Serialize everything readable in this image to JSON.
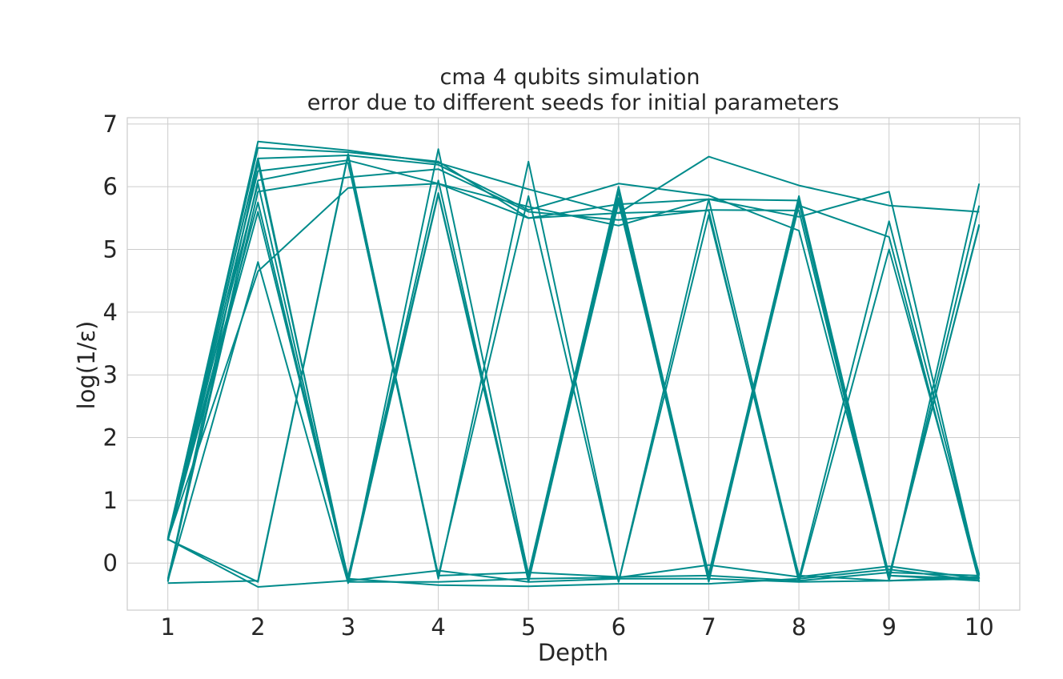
{
  "chart_data": {
    "type": "line",
    "title_lines": [
      "cma 4 qubits simulation",
      "error due to different seeds for initial parameters"
    ],
    "xlabel": "Depth",
    "ylabel": "log(1/ε)",
    "x": [
      1,
      2,
      3,
      4,
      5,
      6,
      7,
      8,
      9,
      10
    ],
    "x_ticks": [
      "1",
      "2",
      "3",
      "4",
      "5",
      "6",
      "7",
      "8",
      "9",
      "10"
    ],
    "y_ticks": [
      "0",
      "1",
      "2",
      "3",
      "4",
      "5",
      "6",
      "7"
    ],
    "xlim": [
      0.55,
      10.45
    ],
    "ylim": [
      -0.75,
      7.1
    ],
    "grid": true,
    "line_color": "#008b8b",
    "series": [
      {
        "values": [
          0.38,
          6.72,
          6.58,
          6.38,
          5.96,
          5.58,
          6.48,
          6.02,
          5.7,
          5.6
        ]
      },
      {
        "values": [
          0.4,
          6.62,
          6.55,
          6.4,
          5.5,
          5.72,
          5.8,
          5.78,
          -0.2,
          -0.25
        ]
      },
      {
        "values": [
          0.38,
          6.45,
          6.5,
          6.35,
          5.63,
          6.05,
          5.86,
          5.3,
          -0.2,
          -0.28
        ]
      },
      {
        "values": [
          0.36,
          6.25,
          6.42,
          6.05,
          5.68,
          5.38,
          5.8,
          5.52,
          5.92,
          -0.25
        ]
      },
      {
        "values": [
          -0.25,
          5.92,
          6.15,
          6.28,
          5.6,
          5.47,
          5.63,
          5.62,
          -0.28,
          -0.22
        ]
      },
      {
        "values": [
          0.38,
          4.65,
          5.98,
          6.05,
          5.5,
          5.58,
          5.62,
          -0.3,
          5.0,
          -0.18
        ]
      },
      {
        "values": [
          -0.32,
          -0.28,
          6.52,
          -0.25,
          6.4,
          -0.3,
          5.8,
          -0.25,
          5.45,
          -0.2
        ]
      },
      {
        "values": [
          0.36,
          6.05,
          -0.3,
          5.88,
          -0.28,
          5.92,
          -0.28,
          5.8,
          -0.22,
          5.4
        ]
      },
      {
        "values": [
          0.38,
          5.75,
          -0.25,
          6.1,
          -0.3,
          5.82,
          -0.3,
          5.75,
          -0.25,
          5.7
        ]
      },
      {
        "values": [
          0.36,
          5.6,
          -0.22,
          5.9,
          -0.22,
          5.75,
          -0.18,
          5.85,
          -0.2,
          5.38
        ]
      },
      {
        "values": [
          -0.28,
          4.8,
          -0.32,
          6.6,
          -0.18,
          6.0,
          -0.22,
          5.7,
          5.2,
          -0.3
        ]
      },
      {
        "values": [
          0.38,
          -0.3,
          6.5,
          -0.2,
          5.85,
          -0.3,
          5.55,
          -0.2,
          -0.28,
          6.05
        ]
      },
      {
        "values": [
          0.38,
          -0.38,
          -0.28,
          -0.12,
          -0.3,
          -0.25,
          -0.25,
          -0.3,
          -0.28,
          -0.25
        ]
      },
      {
        "values": [
          -0.28,
          6.38,
          -0.25,
          -0.35,
          -0.37,
          -0.33,
          -0.33,
          -0.25,
          -0.1,
          -0.28
        ]
      },
      {
        "values": [
          0.36,
          6.45,
          -0.3,
          -0.3,
          -0.25,
          -0.23,
          -0.03,
          -0.22,
          -0.05,
          -0.25
        ]
      },
      {
        "values": [
          -0.3,
          6.1,
          6.38,
          -0.2,
          -0.15,
          -0.22,
          -0.2,
          -0.28,
          -0.15,
          -0.2
        ]
      }
    ]
  }
}
